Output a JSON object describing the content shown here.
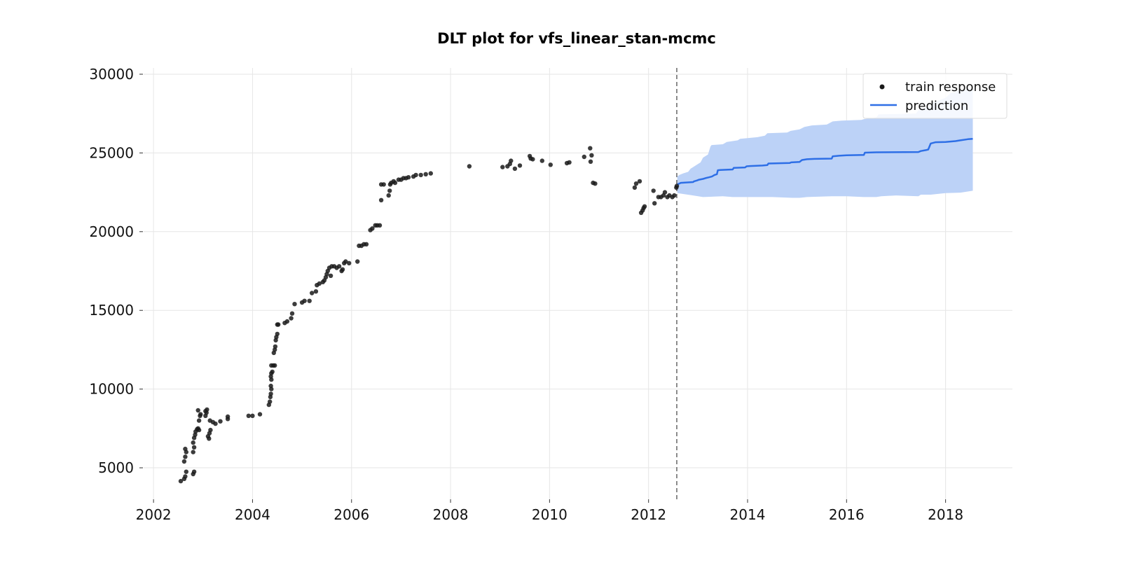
{
  "chart_data": {
    "type": "scatter",
    "title": "DLT plot for vfs_linear_stan-mcmc",
    "xlabel": "",
    "ylabel": "",
    "xlim": [
      2001.8,
      2019.35
    ],
    "ylim": [
      3000,
      30400
    ],
    "xticks": [
      "2002",
      "2004",
      "2006",
      "2008",
      "2010",
      "2012",
      "2014",
      "2016",
      "2018"
    ],
    "yticks": [
      "5000",
      "10000",
      "15000",
      "20000",
      "25000",
      "30000"
    ],
    "grid": true,
    "legend": {
      "position": "top-right",
      "entries": [
        "train response",
        "prediction"
      ]
    },
    "train_end": 2012.57,
    "colors": {
      "train": "#1a1a1a",
      "prediction": "#2e6fe6",
      "band": "#bcd2f7",
      "split_line": "#666666",
      "grid": "#e6e6e6"
    },
    "series": [
      {
        "name": "train response",
        "type": "scatter",
        "points": [
          [
            2002.55,
            4150
          ],
          [
            2002.62,
            4300
          ],
          [
            2002.64,
            4450
          ],
          [
            2002.66,
            4750
          ],
          [
            2002.62,
            5400
          ],
          [
            2002.64,
            5700
          ],
          [
            2002.66,
            6000
          ],
          [
            2002.64,
            6200
          ],
          [
            2002.8,
            4600
          ],
          [
            2002.82,
            4750
          ],
          [
            2002.8,
            6000
          ],
          [
            2002.82,
            6300
          ],
          [
            2002.8,
            6600
          ],
          [
            2002.82,
            6900
          ],
          [
            2002.84,
            7100
          ],
          [
            2002.85,
            7300
          ],
          [
            2002.88,
            7450
          ],
          [
            2002.9,
            7500
          ],
          [
            2002.92,
            7400
          ],
          [
            2002.92,
            8000
          ],
          [
            2002.94,
            8300
          ],
          [
            2002.9,
            8650
          ],
          [
            2002.95,
            8400
          ],
          [
            2003.05,
            8600
          ],
          [
            2003.07,
            8500
          ],
          [
            2003.05,
            8300
          ],
          [
            2003.08,
            8700
          ],
          [
            2003.1,
            7000
          ],
          [
            2003.12,
            6850
          ],
          [
            2003.13,
            7200
          ],
          [
            2003.15,
            7400
          ],
          [
            2003.14,
            8000
          ],
          [
            2003.2,
            7900
          ],
          [
            2003.25,
            7800
          ],
          [
            2003.35,
            7950
          ],
          [
            2003.5,
            8100
          ],
          [
            2003.5,
            8250
          ],
          [
            2003.92,
            8300
          ],
          [
            2004.0,
            8300
          ],
          [
            2004.15,
            8400
          ],
          [
            2004.33,
            9000
          ],
          [
            2004.35,
            9200
          ],
          [
            2004.36,
            9500
          ],
          [
            2004.37,
            9700
          ],
          [
            2004.38,
            10000
          ],
          [
            2004.37,
            10200
          ],
          [
            2004.38,
            10600
          ],
          [
            2004.37,
            10800
          ],
          [
            2004.38,
            11000
          ],
          [
            2004.4,
            11100
          ],
          [
            2004.38,
            11500
          ],
          [
            2004.42,
            11500
          ],
          [
            2004.45,
            11500
          ],
          [
            2004.43,
            12300
          ],
          [
            2004.45,
            12500
          ],
          [
            2004.46,
            12700
          ],
          [
            2004.47,
            13100
          ],
          [
            2004.48,
            13300
          ],
          [
            2004.5,
            13500
          ],
          [
            2004.5,
            14100
          ],
          [
            2004.52,
            14100
          ],
          [
            2004.65,
            14200
          ],
          [
            2004.7,
            14300
          ],
          [
            2004.78,
            14500
          ],
          [
            2004.8,
            14800
          ],
          [
            2004.85,
            15400
          ],
          [
            2005.0,
            15500
          ],
          [
            2005.05,
            15600
          ],
          [
            2005.15,
            15600
          ],
          [
            2005.2,
            16100
          ],
          [
            2005.28,
            16200
          ],
          [
            2005.3,
            16600
          ],
          [
            2005.35,
            16700
          ],
          [
            2005.42,
            16800
          ],
          [
            2005.45,
            16900
          ],
          [
            2005.48,
            17100
          ],
          [
            2005.5,
            17300
          ],
          [
            2005.52,
            17500
          ],
          [
            2005.55,
            17700
          ],
          [
            2005.58,
            17200
          ],
          [
            2005.6,
            17800
          ],
          [
            2005.65,
            17800
          ],
          [
            2005.7,
            17700
          ],
          [
            2005.75,
            17800
          ],
          [
            2005.8,
            17500
          ],
          [
            2005.82,
            17600
          ],
          [
            2005.85,
            18000
          ],
          [
            2005.88,
            18100
          ],
          [
            2005.95,
            18000
          ],
          [
            2006.12,
            18100
          ],
          [
            2006.15,
            19100
          ],
          [
            2006.2,
            19100
          ],
          [
            2006.25,
            19200
          ],
          [
            2006.3,
            19200
          ],
          [
            2006.38,
            20100
          ],
          [
            2006.42,
            20200
          ],
          [
            2006.48,
            20400
          ],
          [
            2006.52,
            20400
          ],
          [
            2006.57,
            20400
          ],
          [
            2006.6,
            22000
          ],
          [
            2006.6,
            23000
          ],
          [
            2006.65,
            23000
          ],
          [
            2006.75,
            22300
          ],
          [
            2006.77,
            22600
          ],
          [
            2006.78,
            23000
          ],
          [
            2006.8,
            23100
          ],
          [
            2006.85,
            23200
          ],
          [
            2006.88,
            23100
          ],
          [
            2006.95,
            23300
          ],
          [
            2007.0,
            23300
          ],
          [
            2007.05,
            23400
          ],
          [
            2007.1,
            23400
          ],
          [
            2007.15,
            23450
          ],
          [
            2007.25,
            23500
          ],
          [
            2007.3,
            23600
          ],
          [
            2007.4,
            23600
          ],
          [
            2007.5,
            23650
          ],
          [
            2007.6,
            23700
          ],
          [
            2008.38,
            24150
          ],
          [
            2009.05,
            24100
          ],
          [
            2009.15,
            24150
          ],
          [
            2009.2,
            24300
          ],
          [
            2009.22,
            24500
          ],
          [
            2009.3,
            24000
          ],
          [
            2009.4,
            24200
          ],
          [
            2009.6,
            24800
          ],
          [
            2009.62,
            24650
          ],
          [
            2009.66,
            24600
          ],
          [
            2009.85,
            24500
          ],
          [
            2010.02,
            24250
          ],
          [
            2010.35,
            24350
          ],
          [
            2010.4,
            24400
          ],
          [
            2010.7,
            24750
          ],
          [
            2010.82,
            25300
          ],
          [
            2010.85,
            24850
          ],
          [
            2010.83,
            24450
          ],
          [
            2010.88,
            23100
          ],
          [
            2010.92,
            23050
          ],
          [
            2011.75,
            23050
          ],
          [
            2011.72,
            22800
          ],
          [
            2011.82,
            23200
          ],
          [
            2011.85,
            21200
          ],
          [
            2011.88,
            21350
          ],
          [
            2011.9,
            21500
          ],
          [
            2011.92,
            21600
          ],
          [
            2012.1,
            22600
          ],
          [
            2012.12,
            21800
          ],
          [
            2012.2,
            22200
          ],
          [
            2012.25,
            22200
          ],
          [
            2012.3,
            22300
          ],
          [
            2012.33,
            22500
          ],
          [
            2012.38,
            22200
          ],
          [
            2012.42,
            22300
          ],
          [
            2012.48,
            22200
          ],
          [
            2012.52,
            22300
          ],
          [
            2012.56,
            22800
          ],
          [
            2012.57,
            22900
          ]
        ]
      },
      {
        "name": "prediction",
        "type": "line",
        "points": [
          [
            2012.58,
            23000
          ],
          [
            2012.62,
            23050
          ],
          [
            2012.65,
            23100
          ],
          [
            2012.9,
            23150
          ],
          [
            2012.92,
            23200
          ],
          [
            2012.98,
            23250
          ],
          [
            2013.02,
            23300
          ],
          [
            2013.1,
            23350
          ],
          [
            2013.15,
            23400
          ],
          [
            2013.22,
            23450
          ],
          [
            2013.28,
            23500
          ],
          [
            2013.33,
            23600
          ],
          [
            2013.38,
            23650
          ],
          [
            2013.4,
            23900
          ],
          [
            2013.45,
            23920
          ],
          [
            2013.7,
            23950
          ],
          [
            2013.72,
            24050
          ],
          [
            2013.95,
            24080
          ],
          [
            2013.98,
            24150
          ],
          [
            2014.05,
            24170
          ],
          [
            2014.3,
            24200
          ],
          [
            2014.4,
            24230
          ],
          [
            2014.42,
            24330
          ],
          [
            2014.85,
            24360
          ],
          [
            2014.88,
            24400
          ],
          [
            2015.05,
            24430
          ],
          [
            2015.1,
            24550
          ],
          [
            2015.2,
            24600
          ],
          [
            2015.35,
            24620
          ],
          [
            2015.7,
            24640
          ],
          [
            2015.72,
            24780
          ],
          [
            2015.85,
            24820
          ],
          [
            2016.0,
            24850
          ],
          [
            2016.35,
            24870
          ],
          [
            2016.37,
            25020
          ],
          [
            2016.6,
            25040
          ],
          [
            2017.45,
            25060
          ],
          [
            2017.5,
            25120
          ],
          [
            2017.6,
            25180
          ],
          [
            2017.65,
            25220
          ],
          [
            2017.7,
            25600
          ],
          [
            2017.8,
            25680
          ],
          [
            2018.0,
            25700
          ],
          [
            2018.2,
            25750
          ],
          [
            2018.3,
            25800
          ],
          [
            2018.45,
            25870
          ],
          [
            2018.55,
            25900
          ]
        ],
        "lower": [
          [
            2012.58,
            22450
          ],
          [
            2012.9,
            22300
          ],
          [
            2013.1,
            22200
          ],
          [
            2013.5,
            22250
          ],
          [
            2013.7,
            22200
          ],
          [
            2014.0,
            22200
          ],
          [
            2014.5,
            22200
          ],
          [
            2014.9,
            22150
          ],
          [
            2015.05,
            22150
          ],
          [
            2015.2,
            22200
          ],
          [
            2015.7,
            22250
          ],
          [
            2016.0,
            22250
          ],
          [
            2016.35,
            22200
          ],
          [
            2016.6,
            22200
          ],
          [
            2016.7,
            22250
          ],
          [
            2017.0,
            22300
          ],
          [
            2017.45,
            22250
          ],
          [
            2017.5,
            22350
          ],
          [
            2017.7,
            22350
          ],
          [
            2018.0,
            22450
          ],
          [
            2018.3,
            22480
          ],
          [
            2018.55,
            22600
          ]
        ],
        "upper": [
          [
            2012.58,
            23500
          ],
          [
            2012.62,
            23600
          ],
          [
            2012.7,
            23700
          ],
          [
            2012.8,
            23800
          ],
          [
            2012.85,
            24000
          ],
          [
            2012.9,
            24100
          ],
          [
            2013.0,
            24300
          ],
          [
            2013.05,
            24400
          ],
          [
            2013.1,
            24700
          ],
          [
            2013.2,
            24900
          ],
          [
            2013.25,
            25400
          ],
          [
            2013.27,
            25500
          ],
          [
            2013.5,
            25550
          ],
          [
            2013.58,
            25700
          ],
          [
            2013.8,
            25800
          ],
          [
            2013.85,
            25900
          ],
          [
            2014.2,
            26000
          ],
          [
            2014.35,
            26100
          ],
          [
            2014.4,
            26250
          ],
          [
            2014.8,
            26300
          ],
          [
            2014.87,
            26400
          ],
          [
            2015.05,
            26500
          ],
          [
            2015.15,
            26650
          ],
          [
            2015.3,
            26750
          ],
          [
            2015.6,
            26800
          ],
          [
            2015.72,
            27000
          ],
          [
            2015.9,
            27050
          ],
          [
            2016.3,
            27100
          ],
          [
            2016.35,
            27150
          ],
          [
            2016.6,
            27250
          ],
          [
            2016.65,
            27450
          ],
          [
            2017.4,
            27500
          ],
          [
            2017.45,
            27700
          ],
          [
            2017.5,
            27800
          ],
          [
            2017.65,
            27900
          ],
          [
            2017.75,
            28200
          ],
          [
            2018.0,
            28500
          ],
          [
            2018.1,
            28800
          ],
          [
            2018.3,
            29000
          ],
          [
            2018.55,
            29100
          ]
        ]
      }
    ]
  }
}
